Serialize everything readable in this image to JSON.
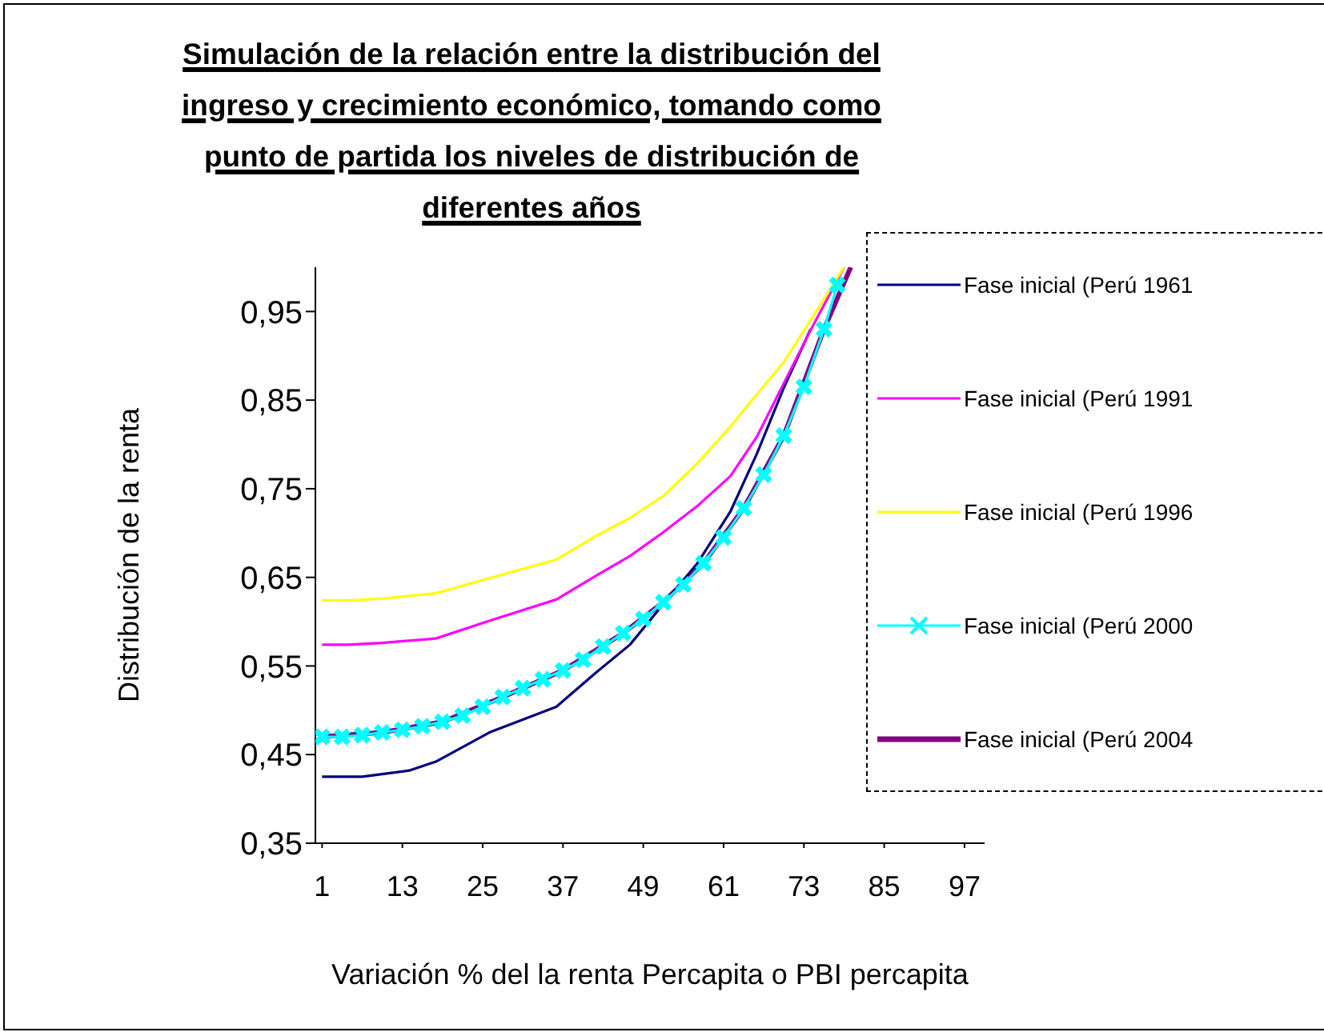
{
  "chart_data": {
    "type": "line",
    "title": "Simulación de la relación entre la distribución del\ningreso y crecimiento económico, tomando como\npunto de partida los niveles de distribución de\ndiferentes años",
    "xlabel": "Variación % del la renta Percapita o PBI percapita",
    "ylabel": "Distribución de la renta",
    "xlim": [
      0,
      100
    ],
    "xticks": [
      1,
      13,
      25,
      37,
      49,
      61,
      73,
      85,
      97
    ],
    "ylim": [
      0.35,
      1.0
    ],
    "yticks": [
      {
        "value": 0.35,
        "label": "0,35"
      },
      {
        "value": 0.45,
        "label": "0,45"
      },
      {
        "value": 0.55,
        "label": "0,55"
      },
      {
        "value": 0.65,
        "label": "0,65"
      },
      {
        "value": 0.75,
        "label": "0,75"
      },
      {
        "value": 0.85,
        "label": "0,85"
      },
      {
        "value": 0.95,
        "label": "0,95"
      }
    ],
    "grid": false,
    "legend": "right",
    "line_style": "solid",
    "series": [
      {
        "name": "Fase inicial (Perú 1961",
        "color": "#000080",
        "marker": "none",
        "x": [
          1,
          7,
          14,
          18,
          26,
          36,
          42,
          47,
          52,
          57,
          62,
          66,
          70,
          74
        ],
        "values": [
          0.425,
          0.425,
          0.432,
          0.442,
          0.475,
          0.504,
          0.543,
          0.574,
          0.62,
          0.665,
          0.724,
          0.79,
          0.864,
          0.93
        ]
      },
      {
        "name": "Fase inicial (Perú 1991",
        "color": "#ff00ff",
        "marker": "none",
        "x": [
          1,
          5,
          10,
          18,
          26,
          36,
          42,
          47,
          52,
          57,
          62,
          66,
          70,
          74,
          79
        ],
        "values": [
          0.574,
          0.574,
          0.576,
          0.581,
          0.601,
          0.625,
          0.652,
          0.674,
          0.701,
          0.73,
          0.764,
          0.809,
          0.869,
          0.929,
          1.0
        ]
      },
      {
        "name": "Fase inicial (Perú 1996",
        "color": "#ffff00",
        "marker": "none",
        "x": [
          1,
          5,
          10,
          18,
          26,
          36,
          42,
          47,
          52,
          57,
          62,
          66,
          70,
          74,
          79
        ],
        "values": [
          0.624,
          0.624,
          0.626,
          0.632,
          0.649,
          0.67,
          0.697,
          0.717,
          0.742,
          0.778,
          0.82,
          0.857,
          0.893,
          0.94,
          1.0
        ]
      },
      {
        "name": "Fase inicial (Perú 2000",
        "color": "#00ffff",
        "marker": "cross",
        "x": [
          1,
          4,
          7,
          10,
          13,
          16,
          19,
          22,
          25,
          28,
          31,
          34,
          37,
          40,
          43,
          46,
          49,
          52,
          55,
          58,
          61,
          64,
          67,
          70,
          73,
          76,
          78
        ],
        "values": [
          0.47,
          0.47,
          0.472,
          0.475,
          0.478,
          0.482,
          0.487,
          0.494,
          0.504,
          0.515,
          0.525,
          0.535,
          0.545,
          0.557,
          0.572,
          0.587,
          0.603,
          0.622,
          0.642,
          0.666,
          0.695,
          0.728,
          0.766,
          0.81,
          0.865,
          0.93,
          0.98
        ]
      },
      {
        "name": "Fase inicial (Perú 2004",
        "color": "#800080",
        "marker": "none",
        "x": [
          1,
          10,
          19,
          28,
          37,
          46,
          52,
          58,
          64,
          70,
          76,
          80
        ],
        "values": [
          0.47,
          0.475,
          0.487,
          0.515,
          0.545,
          0.587,
          0.622,
          0.666,
          0.728,
          0.81,
          0.93,
          1.0
        ]
      }
    ]
  }
}
